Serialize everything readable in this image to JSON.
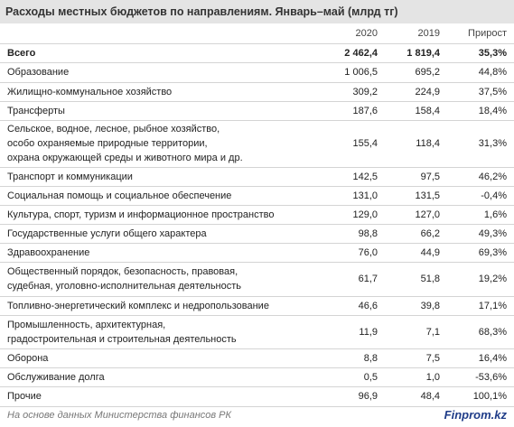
{
  "header": {
    "title": "Расходы местных бюджетов по направлениям. Январь–май (млрд тг)"
  },
  "table": {
    "columns": [
      "2020",
      "2019",
      "Прирост"
    ],
    "rows": [
      [
        "Всего",
        "2 462,4",
        "1 819,4",
        "35,3%"
      ],
      [
        "Образование",
        "1 006,5",
        "695,2",
        "44,8%"
      ],
      [
        "Жилищно-коммунальное хозяйство",
        "309,2",
        "224,9",
        "37,5%"
      ],
      [
        "Трансферты",
        "187,6",
        "158,4",
        "18,4%"
      ],
      [
        "Сельское, водное, лесное, рыбное хозяйство,\nособо охраняемые природные территории,\nохрана окружающей среды и животного мира и др.",
        "155,4",
        "118,4",
        "31,3%"
      ],
      [
        "Транспорт и коммуникации",
        "142,5",
        "97,5",
        "46,2%"
      ],
      [
        "Социальная помощь и социальное обеспечение",
        "131,0",
        "131,5",
        "-0,4%"
      ],
      [
        "Культура, спорт, туризм и информационное пространство",
        "129,0",
        "127,0",
        "1,6%"
      ],
      [
        "Государственные услуги общего характера",
        "98,8",
        "66,2",
        "49,3%"
      ],
      [
        "Здравоохранение",
        "76,0",
        "44,9",
        "69,3%"
      ],
      [
        "Общественный порядок, безопасность, правовая,\nсудебная, уголовно-исполнительная деятельность",
        "61,7",
        "51,8",
        "19,2%"
      ],
      [
        "Топливно-энергетический комплекс и недропользование",
        "46,6",
        "39,8",
        "17,1%"
      ],
      [
        "Промышленность, архитектурная,\nградостроительная и строительная деятельность",
        "11,9",
        "7,1",
        "68,3%"
      ],
      [
        "Оборона",
        "8,8",
        "7,5",
        "16,4%"
      ],
      [
        "Обслуживание долга",
        "0,5",
        "1,0",
        "-53,6%"
      ],
      [
        "Прочие",
        "96,9",
        "48,4",
        "100,1%"
      ]
    ]
  },
  "footer": {
    "source": "На основе данных Министерства финансов РК",
    "logo": "Finprom.kz"
  }
}
